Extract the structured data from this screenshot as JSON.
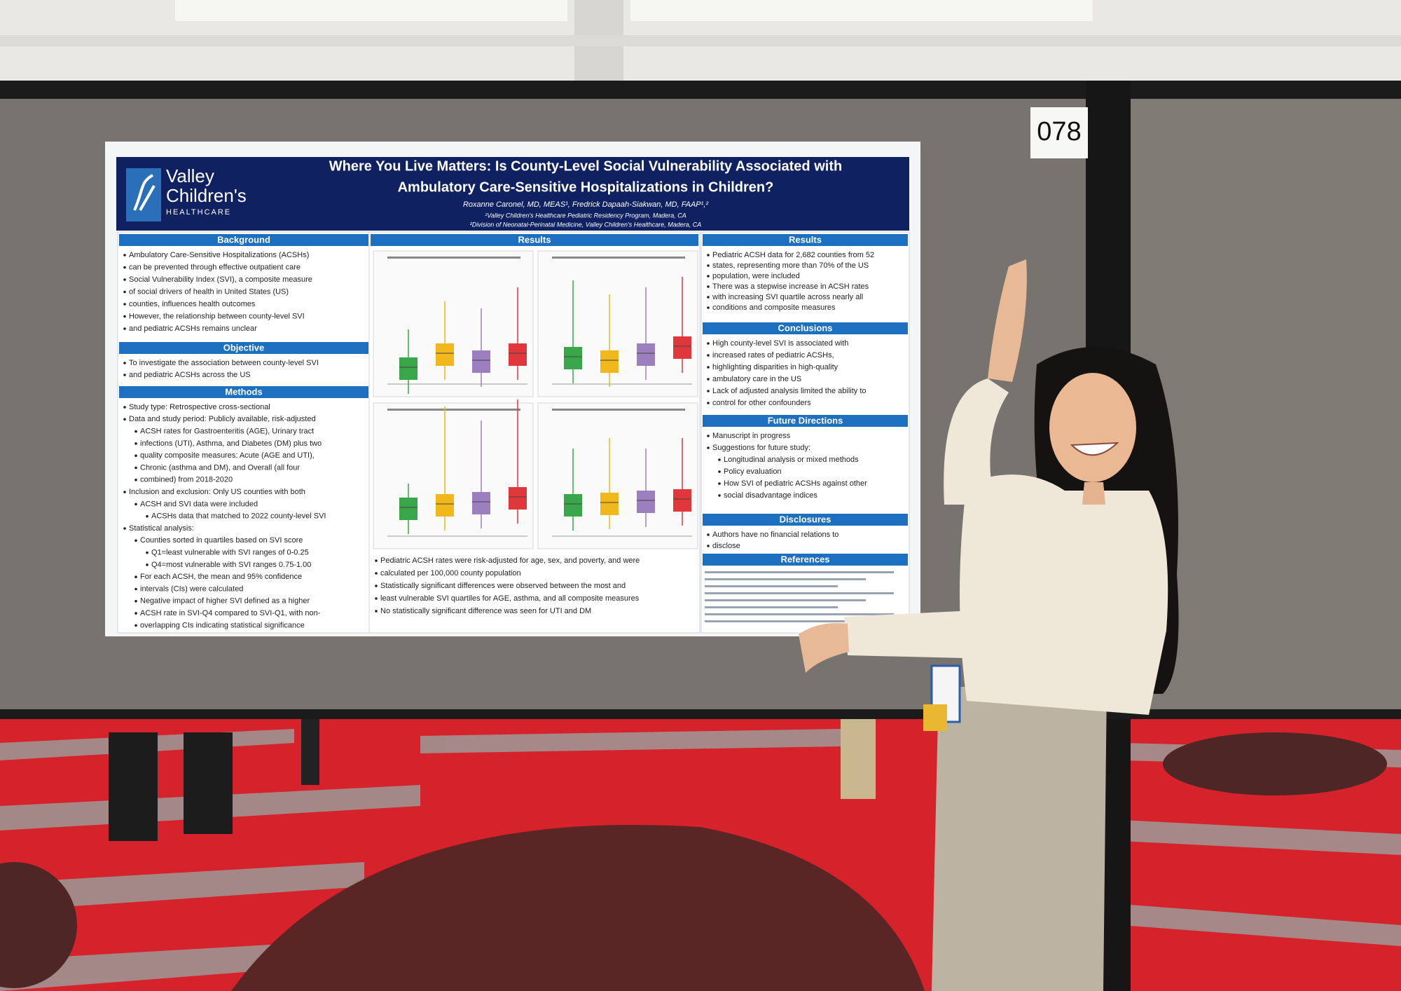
{
  "sign": "078",
  "poster": {
    "logo": {
      "line1": "Valley",
      "line2": "Children's",
      "line3": "HEALTHCARE"
    },
    "title": [
      "Where You Live Matters: Is County-Level Social Vulnerability Associated with",
      "Ambulatory Care-Sensitive Hospitalizations in Children?"
    ],
    "authors": "Roxanne Caronel, MD, MEAS¹, Fredrick Dapaah-Siakwan, MD, FAAP¹,²",
    "affiliations": [
      "¹Valley Children's Healthcare Pediatric Residency Program, Madera, CA",
      "²Division of Neonatal-Perinatal Medicine, Valley Children's Healthcare, Madera, CA"
    ],
    "background": {
      "heading": "Background",
      "lines": [
        "Ambulatory Care-Sensitive Hospitalizations (ACSHs)",
        "can be prevented through effective outpatient care",
        "Social Vulnerability Index (SVI), a composite measure",
        "of social drivers of health in United States (US)",
        "counties, influences health outcomes",
        "However, the relationship between county-level SVI",
        "and pediatric ACSHs remains unclear"
      ]
    },
    "objective": {
      "heading": "Objective",
      "lines": [
        "To investigate the association between county-level SVI",
        "and pediatric ACSHs across the US"
      ]
    },
    "methods": {
      "heading": "Methods",
      "lines": [
        "Study type: Retrospective cross-sectional",
        "Data and study period: Publicly available, risk-adjusted",
        "ACSH rates for Gastroenteritis (AGE), Urinary tract",
        "infections (UTI), Asthma, and Diabetes (DM) plus two",
        "quality composite measures: Acute (AGE and UTI),",
        "Chronic (asthma and DM), and Overall (all four",
        "combined) from 2018-2020",
        "Inclusion and exclusion: Only US counties with both",
        "ACSH and SVI data were included",
        "ACSHs data that matched to 2022 county-level SVI",
        "Statistical analysis:",
        "Counties sorted in quartiles based on SVI score",
        "Q1=least vulnerable with SVI ranges of 0-0.25",
        "Q4=most vulnerable with SVI ranges 0.75-1.00",
        "For each ACSH, the mean and 95% confidence",
        "intervals (CIs) were calculated",
        "Negative impact of higher SVI defined as a higher",
        "ACSH rate in SVI-Q4 compared to SVI-Q1, with non-",
        "overlapping CIs indicating statistical significance"
      ]
    },
    "results_middle": {
      "heading": "Results",
      "lines": [
        "Pediatric ACSH rates were risk-adjusted for age, sex, and poverty, and were",
        "calculated per 100,000 county population",
        "Statistically significant differences were observed between the most and",
        "least vulnerable SVI quartiles for AGE, asthma, and all composite measures",
        "No statistically significant difference was seen for UTI and DM"
      ]
    },
    "results_right": {
      "heading": "Results",
      "lines": [
        "Pediatric ACSH data for 2,682 counties from 52",
        "states, representing more than 70% of the US",
        "population, were included",
        "There was a stepwise increase in ACSH rates",
        "with increasing SVI quartile across nearly all",
        "conditions and composite measures"
      ]
    },
    "conclusions": {
      "heading": "Conclusions",
      "lines": [
        "High county-level SVI is associated with",
        "increased rates of pediatric ACSHs,",
        "highlighting disparities in high-quality",
        "ambulatory care in the US",
        "Lack of adjusted analysis limited the ability to",
        "control for other confounders"
      ]
    },
    "future": {
      "heading": "Future Directions",
      "lines": [
        "Manuscript in progress",
        "Suggestions for future study:",
        "Longitudinal analysis or mixed methods",
        "Policy evaluation",
        "How SVI of pediatric ACSHs against other",
        "social disadvantage indices"
      ]
    },
    "disclosures": {
      "heading": "Disclosures",
      "lines": [
        "Authors have no financial relations to",
        "disclose"
      ]
    },
    "references": {
      "heading": "References"
    }
  }
}
